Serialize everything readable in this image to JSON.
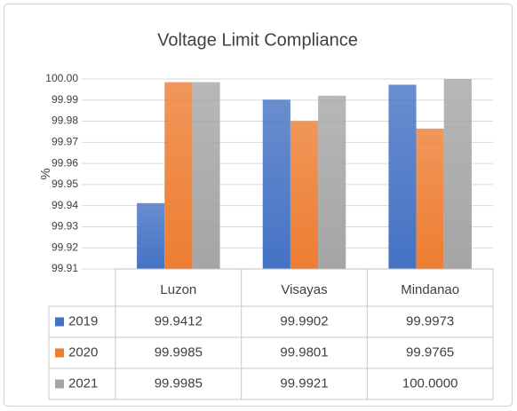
{
  "chart_data": {
    "type": "bar",
    "title": "Voltage Limit Compliance",
    "ylabel": "%",
    "categories": [
      "Luzon",
      "Visayas",
      "Mindanao"
    ],
    "series": [
      {
        "name": "2019",
        "color": "#4472c4",
        "values": [
          99.9412,
          99.9902,
          99.9973
        ]
      },
      {
        "name": "2020",
        "color": "#ed7d31",
        "values": [
          99.9985,
          99.9801,
          99.9765
        ]
      },
      {
        "name": "2021",
        "color": "#a5a5a5",
        "values": [
          99.9985,
          99.9921,
          100.0
        ],
        "value_labels": [
          "99.9985",
          "99.9921",
          "100.0000"
        ]
      }
    ],
    "ylim": [
      99.91,
      100.0
    ],
    "yticks": [
      99.91,
      99.92,
      99.93,
      99.94,
      99.95,
      99.96,
      99.97,
      99.98,
      99.99,
      {
        "value": 100.0,
        "label": "100.00"
      }
    ],
    "grid": true,
    "data_table": true
  }
}
